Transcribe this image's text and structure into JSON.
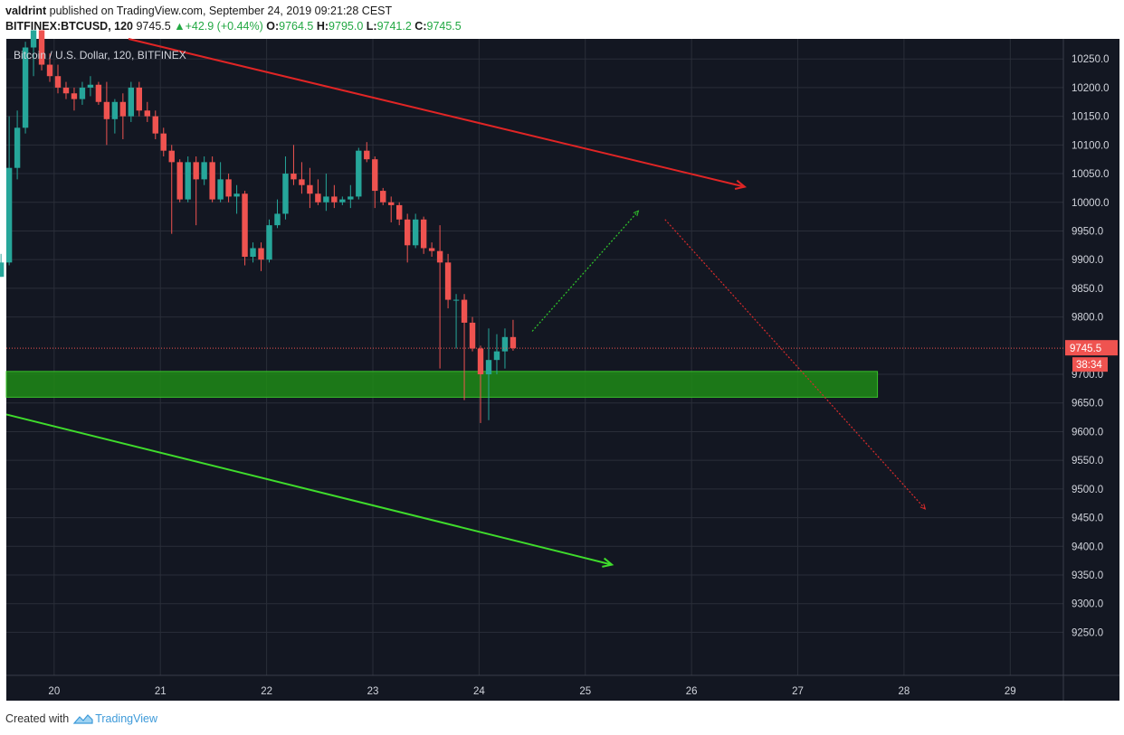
{
  "header": {
    "author": "valdrint",
    "published_text": "published on TradingView.com, September 24, 2019 09:21:28 CEST",
    "symbol": "BITFINEX:BTCUSD, 120",
    "last": "9745.5",
    "change": "+42.9 (+0.44%)",
    "o_label": "O:",
    "o": "9764.5",
    "h_label": "H:",
    "h": "9795.0",
    "l_label": "L:",
    "l": "9741.2",
    "c_label": "C:",
    "c": "9745.5"
  },
  "chart_data": {
    "type": "candlestick",
    "legend_label": "Bitcoin / U.S. Dollar, 120, BITFINEX",
    "x_range": [
      19.55,
      29.5
    ],
    "y_range": [
      9175,
      10285
    ],
    "x_ticks": [
      {
        "value": 20,
        "label": "20"
      },
      {
        "value": 21,
        "label": "21"
      },
      {
        "value": 22,
        "label": "22"
      },
      {
        "value": 23,
        "label": "23"
      },
      {
        "value": 24,
        "label": "24"
      },
      {
        "value": 25,
        "label": "25"
      },
      {
        "value": 26,
        "label": "26"
      },
      {
        "value": 27,
        "label": "27"
      },
      {
        "value": 28,
        "label": "28"
      },
      {
        "value": 29,
        "label": "29"
      }
    ],
    "y_ticks": [
      {
        "value": 10250,
        "label": "10250.0"
      },
      {
        "value": 10200,
        "label": "10200.0"
      },
      {
        "value": 10150,
        "label": "10150.0"
      },
      {
        "value": 10100,
        "label": "10100.0"
      },
      {
        "value": 10050,
        "label": "10050.0"
      },
      {
        "value": 10000,
        "label": "10000.0"
      },
      {
        "value": 9950,
        "label": "9950.0"
      },
      {
        "value": 9900,
        "label": "9900.0"
      },
      {
        "value": 9850,
        "label": "9850.0"
      },
      {
        "value": 9800,
        "label": "9800.0"
      },
      {
        "value": 9700,
        "label": "9700.0"
      },
      {
        "value": 9650,
        "label": "9650.0"
      },
      {
        "value": 9600,
        "label": "9600.0"
      },
      {
        "value": 9550,
        "label": "9550.0"
      },
      {
        "value": 9500,
        "label": "9500.0"
      },
      {
        "value": 9450,
        "label": "9450.0"
      },
      {
        "value": 9400,
        "label": "9400.0"
      },
      {
        "value": 9350,
        "label": "9350.0"
      },
      {
        "value": 9300,
        "label": "9300.0"
      },
      {
        "value": 9250,
        "label": "9250.0"
      }
    ],
    "candles": [
      [
        9870,
        9910,
        9870,
        9895
      ],
      [
        9895,
        10150,
        9890,
        10060
      ],
      [
        10060,
        10160,
        10040,
        10130
      ],
      [
        10130,
        10280,
        10120,
        10270
      ],
      [
        10270,
        10300,
        10220,
        10300
      ],
      [
        10300,
        10300,
        10230,
        10240
      ],
      [
        10240,
        10260,
        10210,
        10220
      ],
      [
        10220,
        10240,
        10190,
        10200
      ],
      [
        10200,
        10210,
        10180,
        10190
      ],
      [
        10190,
        10200,
        10160,
        10180
      ],
      [
        10180,
        10210,
        10170,
        10200
      ],
      [
        10200,
        10220,
        10185,
        10205
      ],
      [
        10205,
        10210,
        10170,
        10175
      ],
      [
        10175,
        10210,
        10100,
        10145
      ],
      [
        10145,
        10180,
        10120,
        10175
      ],
      [
        10175,
        10190,
        10110,
        10150
      ],
      [
        10150,
        10210,
        10140,
        10200
      ],
      [
        10200,
        10210,
        10150,
        10160
      ],
      [
        10160,
        10175,
        10140,
        10150
      ],
      [
        10150,
        10160,
        10110,
        10120
      ],
      [
        10120,
        10130,
        10080,
        10090
      ],
      [
        10090,
        10100,
        9945,
        10070
      ],
      [
        10070,
        10075,
        10000,
        10005
      ],
      [
        10005,
        10080,
        10000,
        10070
      ],
      [
        10070,
        10080,
        9960,
        10040
      ],
      [
        10040,
        10080,
        10030,
        10070
      ],
      [
        10070,
        10080,
        10000,
        10005
      ],
      [
        10005,
        10070,
        10000,
        10040
      ],
      [
        10040,
        10050,
        10000,
        10010
      ],
      [
        10010,
        10030,
        9980,
        10015
      ],
      [
        10015,
        10020,
        9890,
        9905
      ],
      [
        9905,
        9930,
        9895,
        9920
      ],
      [
        9920,
        9930,
        9880,
        9900
      ],
      [
        9900,
        9970,
        9895,
        9960
      ],
      [
        9960,
        10005,
        9955,
        9980
      ],
      [
        9980,
        10080,
        9970,
        10050
      ],
      [
        10050,
        10100,
        10030,
        10040
      ],
      [
        10040,
        10070,
        10015,
        10030
      ],
      [
        10030,
        10060,
        9990,
        10015
      ],
      [
        10015,
        10040,
        9995,
        10000
      ],
      [
        10000,
        10050,
        9985,
        10010
      ],
      [
        10010,
        10030,
        9990,
        10000
      ],
      [
        10000,
        10010,
        9995,
        10005
      ],
      [
        10005,
        10030,
        9990,
        10010
      ],
      [
        10010,
        10095,
        10005,
        10090
      ],
      [
        10090,
        10105,
        10070,
        10075
      ],
      [
        10075,
        10080,
        9990,
        10020
      ],
      [
        10020,
        10025,
        9995,
        10000
      ],
      [
        10000,
        10010,
        9965,
        9995
      ],
      [
        9995,
        10000,
        9960,
        9970
      ],
      [
        9970,
        9980,
        9895,
        9925
      ],
      [
        9925,
        9980,
        9920,
        9970
      ],
      [
        9970,
        9975,
        9910,
        9920
      ],
      [
        9920,
        9930,
        9905,
        9915
      ],
      [
        9915,
        9960,
        9710,
        9895
      ],
      [
        9895,
        9910,
        9815,
        9830
      ],
      [
        9830,
        9840,
        9745,
        9830
      ],
      [
        9830,
        9840,
        9655,
        9790
      ],
      [
        9790,
        9800,
        9740,
        9745
      ],
      [
        9745,
        9750,
        9615,
        9700
      ],
      [
        9700,
        9780,
        9620,
        9725
      ],
      [
        9725,
        9770,
        9700,
        9740
      ],
      [
        9740,
        9780,
        9710,
        9765
      ],
      [
        9765,
        9795,
        9741.2,
        9745.5
      ]
    ],
    "support_zone": {
      "x_from": 19.55,
      "x_to": 27.75,
      "y_from": 9660,
      "y_to": 9705
    },
    "trendlines": [
      {
        "x1": 20.7,
        "y1": 10285,
        "x2": 26.5,
        "y2": 10027,
        "color": "#e02525",
        "style": "solid"
      },
      {
        "x1": 19.55,
        "y1": 9630,
        "x2": 25.25,
        "y2": 9368,
        "color": "#3fdc2c",
        "style": "solid"
      }
    ],
    "projections": [
      {
        "x1": 24.5,
        "y1": 9775,
        "x2": 25.5,
        "y2": 9985,
        "color": "#2fc42b"
      },
      {
        "x1": 25.75,
        "y1": 9970,
        "x2": 28.2,
        "y2": 9465,
        "color": "#d82b2b"
      }
    ],
    "last_price": {
      "value": 9745.5,
      "label": "9745.5",
      "timer": "38:34"
    },
    "colors": {
      "background": "#131722",
      "grid": "#2a2e39",
      "up": "#26a69a",
      "down": "#ef5350",
      "zone_fill": "#1e8a16",
      "zone_stroke": "#39c02a",
      "axis_text": "#d1d4dc",
      "price_label": "#ef5350"
    }
  },
  "footer": {
    "created_with": "Created with",
    "brand": "TradingView"
  }
}
